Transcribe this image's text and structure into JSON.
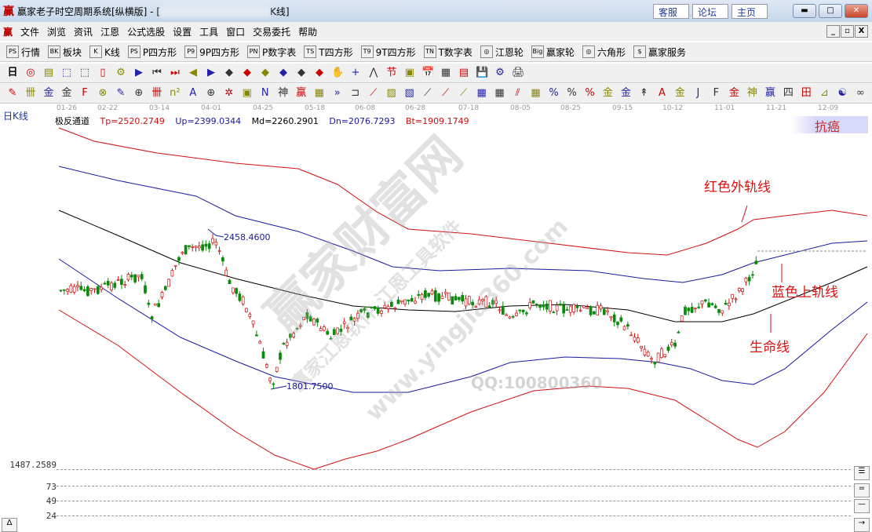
{
  "window": {
    "title_prefix": "赢家老子时空周期系统[纵横版] - [",
    "title_suffix": "K线]",
    "logo": "赢",
    "buttons": [
      "客服",
      "论坛",
      "主页"
    ],
    "controls": [
      "minimize",
      "maximize",
      "close"
    ]
  },
  "menu": [
    "文件",
    "浏览",
    "资讯",
    "江恩",
    "公式选股",
    "设置",
    "工具",
    "窗口",
    "交易委托",
    "帮助"
  ],
  "toolbar1": [
    {
      "icon": "PS",
      "label": "行情"
    },
    {
      "icon": "BK",
      "label": "板块"
    },
    {
      "icon": "K",
      "label": "K线"
    },
    {
      "icon": "PS",
      "label": "P四方形"
    },
    {
      "icon": "P9",
      "label": "9P四方形"
    },
    {
      "icon": "PN",
      "label": "P数字表"
    },
    {
      "icon": "TS",
      "label": "T四方形"
    },
    {
      "icon": "T9",
      "label": "9T四方形"
    },
    {
      "icon": "TN",
      "label": "T数字表"
    },
    {
      "icon": "◎",
      "label": "江恩轮"
    },
    {
      "icon": "Big",
      "label": "赢家轮"
    },
    {
      "icon": "◎",
      "label": "六角形"
    },
    {
      "icon": "$",
      "label": "赢家服务"
    }
  ],
  "toolbar2": {
    "period": "日",
    "icons": [
      "◎",
      "▤",
      "⬚",
      "⬚",
      "▯",
      "⚙",
      "▶",
      "⏮",
      "⏭",
      "◀",
      "▶",
      "◆",
      "◆",
      "◆",
      "◆",
      "◆",
      "◆",
      "✋",
      "+",
      "⋀",
      "节",
      "▣",
      "📅",
      "▦",
      "▤",
      "💾",
      "⚙",
      "🖨"
    ]
  },
  "toolbar3": {
    "icons": [
      "✎",
      "卌",
      "金",
      "金",
      "F",
      "⊗",
      "✎",
      "⊕",
      "卌",
      "n²",
      "A",
      "⊕",
      "✲",
      "▣",
      "N",
      "神",
      "赢",
      "▦",
      "»",
      "⊐",
      "⟋",
      "▨",
      "▧",
      "⟋",
      "⟋",
      "⟋",
      "▦",
      "▦",
      "⫽",
      "▦",
      "%",
      "%",
      "%",
      "金",
      "金",
      "↟",
      "A",
      "金",
      "J",
      "F",
      "金",
      "神",
      "赢",
      "四",
      "田",
      "⊿",
      "☯",
      "∞"
    ]
  },
  "chart": {
    "period_label": "日K线",
    "dates": [
      "01-26",
      "02-22",
      "03-14",
      "04-01",
      "04-25",
      "05-18",
      "06-08",
      "06-28",
      "07-18",
      "08-05",
      "08-25",
      "09-15",
      "10-12",
      "11-01",
      "11-21",
      "12-09"
    ],
    "indicator": {
      "name": "极反通道",
      "tp": "Tp=2520.2749",
      "up": "Up=2399.0344",
      "md": "Md=2260.2901",
      "dn": "Dn=2076.7293",
      "bt": "Bt=1909.1749"
    },
    "high_label": "2458.4600",
    "low_label": "1801.7500",
    "annotations": {
      "red_outer": "红色外轨线",
      "blue_upper": "蓝色上轨线",
      "life_line": "生命线",
      "corner": "抗癌"
    },
    "watermark": [
      "赢家财富网",
      "赢家江恩软件 江恩工具软件",
      "www.yingjia360.com",
      "QQ:100800360"
    ],
    "colors": {
      "red": "#d01010",
      "blue": "#1a1aa0",
      "black": "#000000",
      "up": "#d01010",
      "down": "#0a8a0a"
    }
  },
  "levels": [
    "1487.2589",
    "73",
    "49",
    "24"
  ]
}
